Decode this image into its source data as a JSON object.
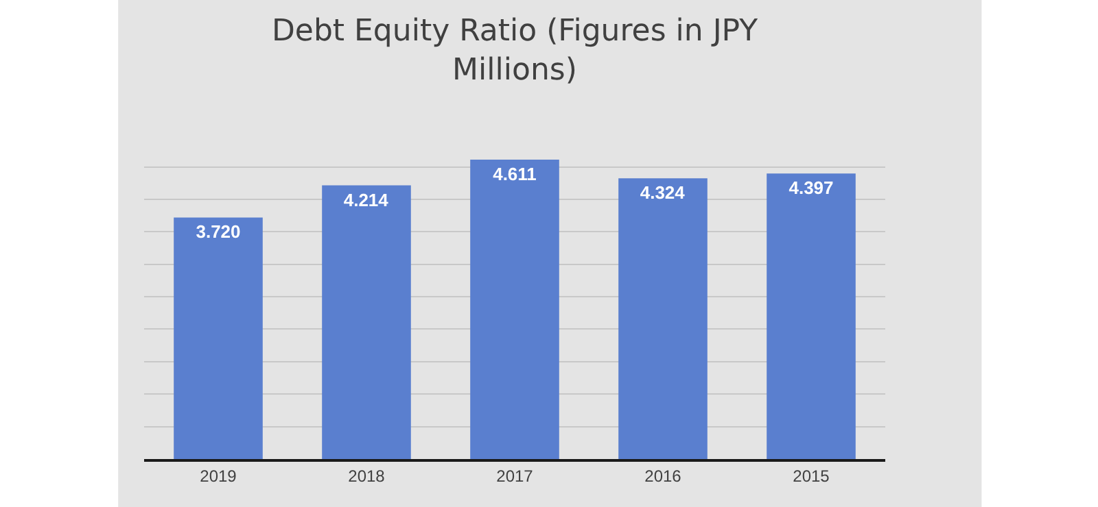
{
  "chart_data": {
    "type": "bar",
    "title": "Debt Equity Ratio (Figures in JPY Millions)",
    "categories": [
      "2019",
      "2018",
      "2017",
      "2016",
      "2015"
    ],
    "values": [
      3.72,
      4.214,
      4.611,
      4.324,
      4.397
    ],
    "value_labels": [
      "3.720",
      "4.214",
      "4.611",
      "4.324",
      "4.397"
    ],
    "color": "#5a7fcf",
    "yticks": [
      {
        "value": 0,
        "label": null
      },
      {
        "value": 0.5,
        "label": null
      },
      {
        "value": 1,
        "label": null
      },
      {
        "value": 1.5,
        "label": null
      },
      {
        "value": 2,
        "label": null
      },
      {
        "value": 2.5,
        "label": null
      },
      {
        "value": 3,
        "label": null
      },
      {
        "value": 3.5,
        "label": null
      },
      {
        "value": 4,
        "label": null
      },
      {
        "value": 4.5,
        "label": null
      }
    ],
    "grid": "y",
    "legend": false,
    "tick_labels": "x"
  }
}
